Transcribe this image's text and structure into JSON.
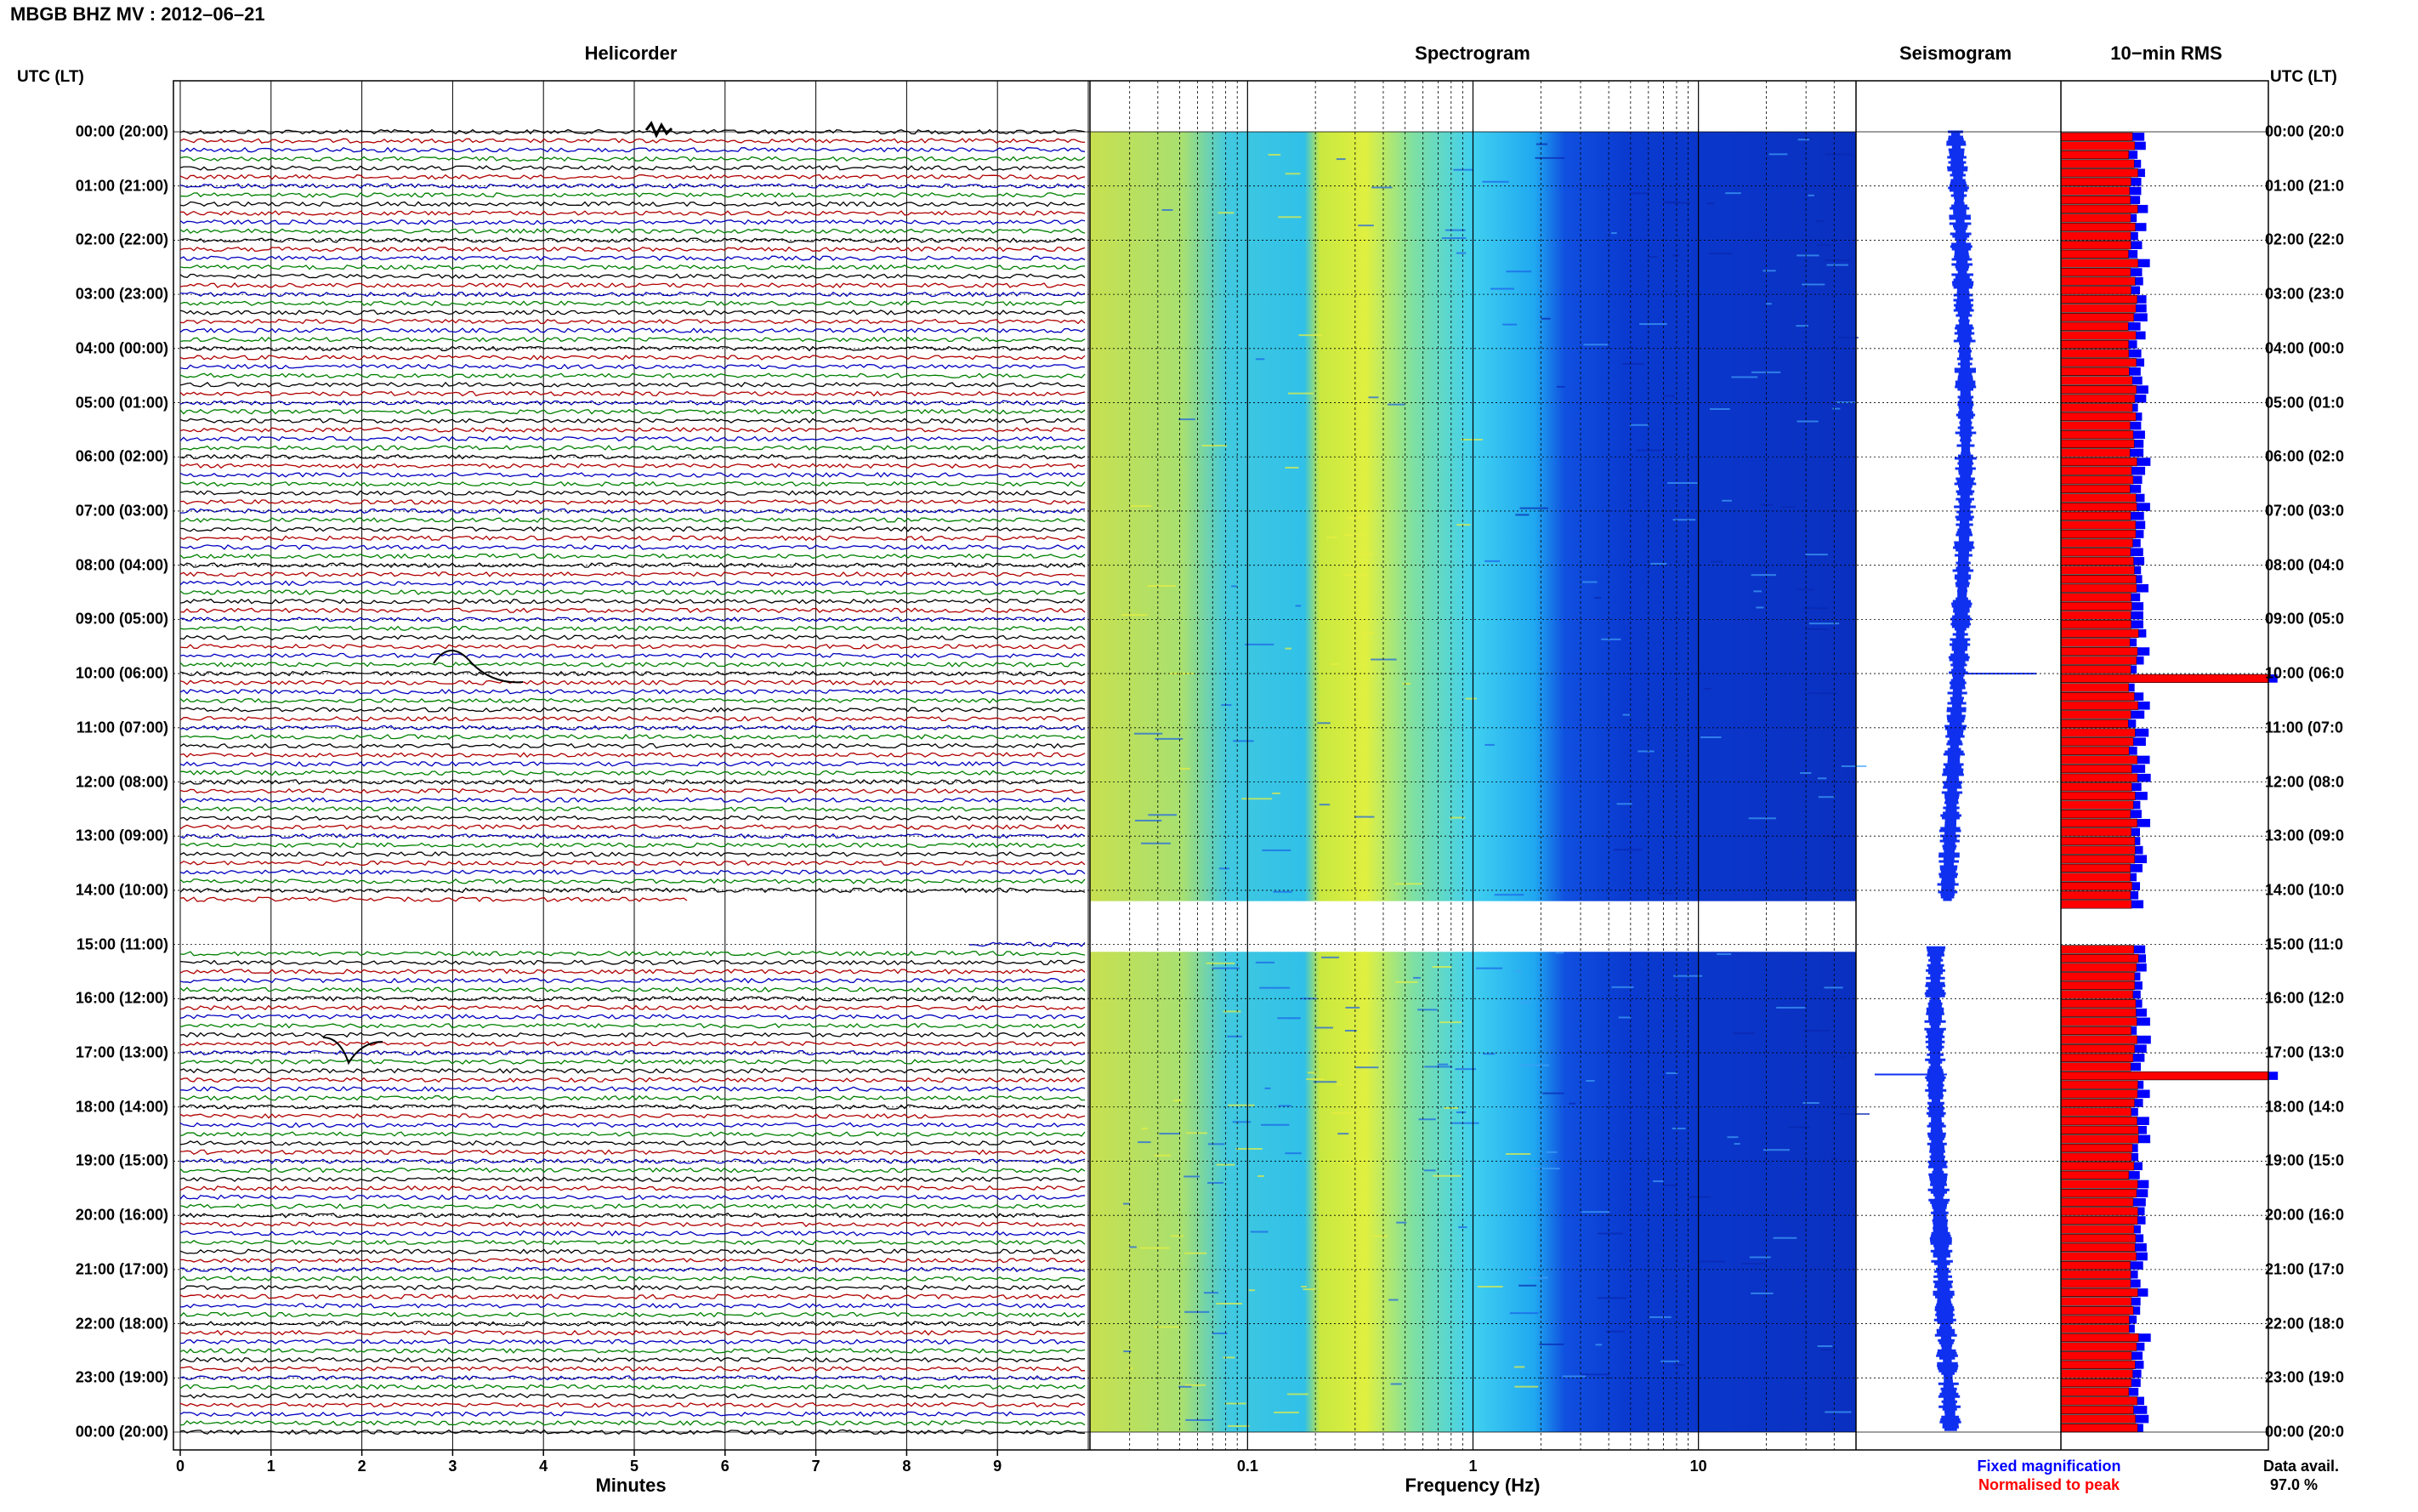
{
  "title": "MBGB BHZ MV : 2012–06–21",
  "panels": {
    "helicorder": "Helicorder",
    "spectrogram": "Spectrogram",
    "seismogram": "Seismogram",
    "rms": "10−min RMS"
  },
  "utc_header_left": "UTC (LT)",
  "utc_header_right": "UTC (LT)",
  "time_labels_left": [
    "00:00 (20:00)",
    "01:00 (21:00)",
    "02:00 (22:00)",
    "03:00 (23:00)",
    "04:00 (00:00)",
    "05:00 (01:00)",
    "06:00 (02:00)",
    "07:00 (03:00)",
    "08:00 (04:00)",
    "09:00 (05:00)",
    "10:00 (06:00)",
    "11:00 (07:00)",
    "12:00 (08:00)",
    "13:00 (09:00)",
    "14:00 (10:00)",
    "15:00 (11:00)",
    "16:00 (12:00)",
    "17:00 (13:00)",
    "18:00 (14:00)",
    "19:00 (15:00)",
    "20:00 (16:00)",
    "21:00 (17:00)",
    "22:00 (18:00)",
    "23:00 (19:00)",
    "00:00 (20:00)"
  ],
  "time_labels_right": [
    "00:00 (20:0",
    "01:00 (21:0",
    "02:00 (22:0",
    "03:00 (23:0",
    "04:00 (00:0",
    "05:00 (01:0",
    "06:00 (02:0",
    "07:00 (03:0",
    "08:00 (04:0",
    "09:00 (05:0",
    "10:00 (06:0",
    "11:00 (07:0",
    "12:00 (08:0",
    "13:00 (09:0",
    "14:00 (10:0",
    "15:00 (11:0",
    "16:00 (12:0",
    "17:00 (13:0",
    "18:00 (14:0",
    "19:00 (15:0",
    "20:00 (16:0",
    "21:00 (17:0",
    "22:00 (18:0",
    "23:00 (19:0",
    "00:00 (20:0"
  ],
  "helicorder_axis": {
    "label": "Minutes",
    "ticks": [
      "0",
      "1",
      "2",
      "3",
      "4",
      "5",
      "6",
      "7",
      "8",
      "9"
    ]
  },
  "spectrogram_axis": {
    "label": "Frequency (Hz)",
    "ticks": [
      "0.1",
      "1",
      "10"
    ]
  },
  "legend": {
    "fixed": "Fixed magnification",
    "normalised": "Normalised to peak",
    "fixed_color": "#0000ff",
    "normalised_color": "#ff0000"
  },
  "data_avail": {
    "label": "Data avail.",
    "value": "97.0 %"
  },
  "trace_colors": [
    "#000000",
    "#b00000",
    "#0000c0",
    "#008000"
  ],
  "chart_data": {
    "type": "heatmap",
    "station": "MBGB BHZ MV",
    "date": "2012-06-21",
    "hours_utc": [
      0,
      1,
      2,
      3,
      4,
      5,
      6,
      7,
      8,
      9,
      10,
      11,
      12,
      13,
      14,
      15,
      16,
      17,
      18,
      19,
      20,
      21,
      22,
      23,
      24
    ],
    "data_gap_hours": [
      14.2,
      14.9
    ],
    "helicorder": {
      "x_range_minutes": [
        0,
        10
      ],
      "lines_per_hour": 6
    },
    "spectrogram": {
      "x_scale": "log",
      "x_range_hz": [
        0.02,
        50
      ],
      "colormap": "blue-cyan-yellow"
    },
    "rms_10min": {
      "spikes_hours": [
        10.0,
        17.4
      ],
      "typical_relative": 0.35
    }
  }
}
